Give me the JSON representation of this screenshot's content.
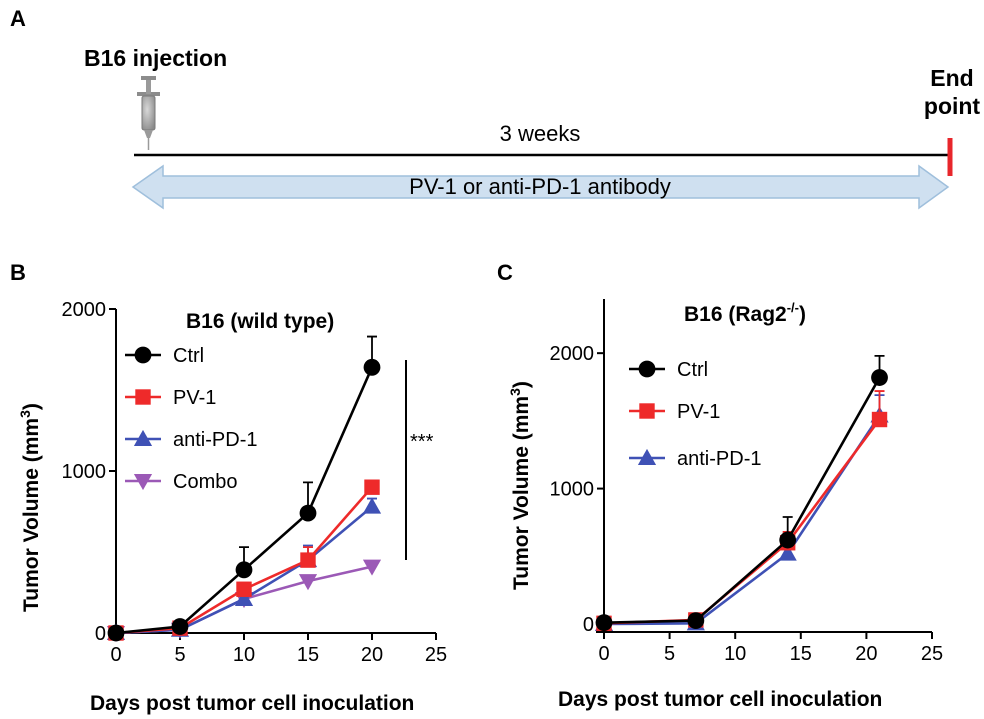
{
  "panels": {
    "a": "A",
    "b": "B",
    "c": "C"
  },
  "timeline": {
    "injection_label": "B16 injection",
    "duration_label": "3 weeks",
    "end_label_line1": "End",
    "end_label_line2": "point",
    "treatment_label": "PV-1 or anti-PD-1 antibody"
  },
  "colors": {
    "Ctrl": "#000000",
    "PV-1": "#ee2a2a",
    "anti-PD-1": "#3f51b5",
    "Combo": "#9b59b6",
    "arrow_fill": "#cfe0f0",
    "arrow_stroke": "#9fbfdc",
    "endpoint": "#e8262b"
  },
  "chart_data": [
    {
      "type": "line",
      "panel": "B",
      "title": "B16 (wild type)",
      "xlabel": "Days post tumor cell inoculation",
      "ylabel": "Tumor Volume (mm³)",
      "ylabel_base": "Tumor Volume (mm",
      "ylabel_sup": "3",
      "ylabel_close": ")",
      "xlim": [
        0,
        25
      ],
      "ylim": [
        0,
        2000
      ],
      "xticks": [
        0,
        5,
        10,
        15,
        20,
        25
      ],
      "yticks": [
        0,
        1000,
        2000
      ],
      "significance": "***",
      "series": [
        {
          "name": "Ctrl",
          "marker": "circle",
          "x": [
            0,
            5,
            10,
            15,
            20
          ],
          "values": [
            0,
            40,
            390,
            740,
            1640
          ],
          "err": [
            0,
            10,
            140,
            190,
            190
          ]
        },
        {
          "name": "PV-1",
          "marker": "square",
          "x": [
            0,
            5,
            10,
            15,
            20
          ],
          "values": [
            0,
            30,
            270,
            450,
            900
          ],
          "err": [
            0,
            5,
            40,
            80,
            40
          ]
        },
        {
          "name": "anti-PD-1",
          "marker": "triangle-up",
          "x": [
            0,
            5,
            10,
            15,
            20
          ],
          "values": [
            0,
            20,
            210,
            450,
            780
          ],
          "err": [
            0,
            5,
            30,
            90,
            50
          ]
        },
        {
          "name": "Combo",
          "marker": "triangle-down",
          "x": [
            0,
            5,
            10,
            15,
            20
          ],
          "values": [
            0,
            20,
            210,
            320,
            410
          ],
          "err": [
            0,
            5,
            20,
            30,
            20
          ]
        }
      ]
    },
    {
      "type": "line",
      "panel": "C",
      "title_base": "B16 (Rag2",
      "title_sup": "-/-",
      "title_close": ")",
      "xlabel": "Days post tumor cell inoculation",
      "ylabel": "Tumor Volume (mm³)",
      "ylabel_base": "Tumor Volume (mm",
      "ylabel_sup": "3",
      "ylabel_close": ")",
      "xlim": [
        0,
        25
      ],
      "ylim": [
        0,
        2400
      ],
      "xticks": [
        0,
        5,
        10,
        15,
        20,
        25
      ],
      "yticks": [
        0,
        1000,
        2000
      ],
      "series": [
        {
          "name": "Ctrl",
          "marker": "circle",
          "x": [
            0,
            7,
            14,
            21
          ],
          "values": [
            10,
            25,
            620,
            1820
          ],
          "err": [
            0,
            10,
            170,
            160
          ]
        },
        {
          "name": "PV-1",
          "marker": "square",
          "x": [
            0,
            7,
            14,
            21
          ],
          "values": [
            5,
            30,
            600,
            1510
          ],
          "err": [
            0,
            10,
            80,
            210
          ]
        },
        {
          "name": "anti-PD-1",
          "marker": "triangle-up",
          "x": [
            0,
            7,
            14,
            21
          ],
          "values": [
            0,
            5,
            520,
            1540
          ],
          "err": [
            0,
            5,
            60,
            150
          ]
        }
      ]
    }
  ]
}
